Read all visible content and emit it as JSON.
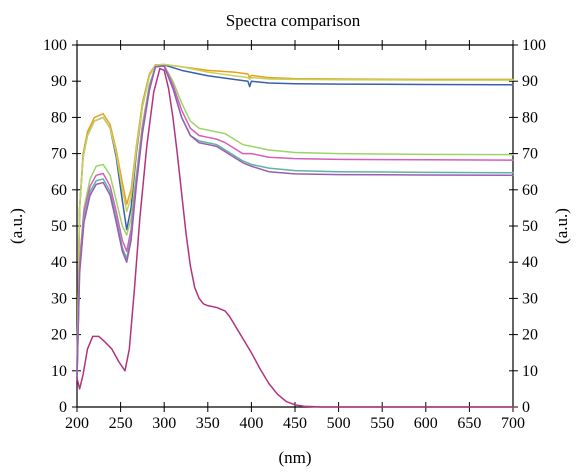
{
  "chart_data": {
    "type": "line",
    "title": "Spectra comparison",
    "xlabel": "(nm)",
    "ylabel": "(a.u.)",
    "ylabel_right": "(a.u.)",
    "xlim": [
      200,
      700
    ],
    "ylim": [
      0,
      100
    ],
    "xticks": [
      200,
      250,
      300,
      350,
      400,
      450,
      500,
      550,
      600,
      650,
      700
    ],
    "yticks": [
      0,
      10,
      20,
      30,
      40,
      50,
      60,
      70,
      80,
      90,
      100
    ],
    "grid": false,
    "legend": "none",
    "series": [
      {
        "color": "#e8a01e",
        "points": [
          [
            200,
            10
          ],
          [
            203,
            55
          ],
          [
            207,
            70
          ],
          [
            212,
            76
          ],
          [
            220,
            80
          ],
          [
            230,
            81
          ],
          [
            238,
            78
          ],
          [
            245,
            71
          ],
          [
            252,
            62
          ],
          [
            257,
            56
          ],
          [
            262,
            60
          ],
          [
            268,
            72
          ],
          [
            275,
            84
          ],
          [
            283,
            92
          ],
          [
            290,
            94.5
          ],
          [
            300,
            94.6
          ],
          [
            320,
            94
          ],
          [
            350,
            93
          ],
          [
            380,
            92.5
          ],
          [
            396,
            92
          ],
          [
            398,
            91
          ],
          [
            400,
            91.6
          ],
          [
            420,
            91
          ],
          [
            450,
            90.7
          ],
          [
            500,
            90.6
          ],
          [
            600,
            90.5
          ],
          [
            700,
            90.5
          ]
        ]
      },
      {
        "color": "#3a5fb0",
        "points": [
          [
            200,
            10
          ],
          [
            203,
            55
          ],
          [
            207,
            69
          ],
          [
            212,
            75
          ],
          [
            220,
            79
          ],
          [
            230,
            80
          ],
          [
            238,
            77
          ],
          [
            245,
            69
          ],
          [
            252,
            57
          ],
          [
            257,
            49
          ],
          [
            262,
            55
          ],
          [
            268,
            70
          ],
          [
            275,
            83
          ],
          [
            283,
            91.5
          ],
          [
            290,
            94.5
          ],
          [
            300,
            94.5
          ],
          [
            320,
            93
          ],
          [
            350,
            91.5
          ],
          [
            380,
            90.5
          ],
          [
            396,
            90
          ],
          [
            398,
            88.5
          ],
          [
            400,
            90
          ],
          [
            420,
            89.5
          ],
          [
            450,
            89.3
          ],
          [
            500,
            89.2
          ],
          [
            600,
            89.1
          ],
          [
            700,
            89
          ]
        ]
      },
      {
        "color": "#c6d35a",
        "points": [
          [
            200,
            10
          ],
          [
            203,
            55
          ],
          [
            207,
            69
          ],
          [
            212,
            75
          ],
          [
            220,
            79
          ],
          [
            230,
            80
          ],
          [
            238,
            77
          ],
          [
            245,
            70
          ],
          [
            252,
            60
          ],
          [
            257,
            54
          ],
          [
            262,
            58
          ],
          [
            268,
            71
          ],
          [
            275,
            83
          ],
          [
            283,
            91.5
          ],
          [
            290,
            94.5
          ],
          [
            300,
            94.6
          ],
          [
            320,
            94
          ],
          [
            350,
            92.5
          ],
          [
            380,
            91.5
          ],
          [
            396,
            91
          ],
          [
            398,
            90.5
          ],
          [
            400,
            91
          ],
          [
            420,
            90.6
          ],
          [
            450,
            90.5
          ],
          [
            500,
            90.4
          ],
          [
            600,
            90.3
          ],
          [
            700,
            90.3
          ]
        ]
      },
      {
        "color": "#9dd46a",
        "points": [
          [
            200,
            8
          ],
          [
            203,
            40
          ],
          [
            208,
            55
          ],
          [
            215,
            63
          ],
          [
            222,
            66.5
          ],
          [
            230,
            67
          ],
          [
            238,
            64
          ],
          [
            245,
            57
          ],
          [
            252,
            50
          ],
          [
            257,
            47.5
          ],
          [
            262,
            52
          ],
          [
            268,
            64
          ],
          [
            275,
            78
          ],
          [
            283,
            89
          ],
          [
            290,
            94
          ],
          [
            300,
            94.3
          ],
          [
            310,
            90
          ],
          [
            320,
            84
          ],
          [
            330,
            79
          ],
          [
            340,
            77
          ],
          [
            350,
            76.5
          ],
          [
            360,
            76
          ],
          [
            370,
            75.5
          ],
          [
            380,
            74
          ],
          [
            390,
            72.5
          ],
          [
            400,
            72
          ],
          [
            420,
            71
          ],
          [
            450,
            70.3
          ],
          [
            500,
            70
          ],
          [
            600,
            69.8
          ],
          [
            700,
            69.7
          ]
        ]
      },
      {
        "color": "#d35fb7",
        "points": [
          [
            200,
            8
          ],
          [
            203,
            40
          ],
          [
            208,
            54
          ],
          [
            215,
            61
          ],
          [
            222,
            64
          ],
          [
            230,
            64.5
          ],
          [
            238,
            61
          ],
          [
            245,
            54
          ],
          [
            252,
            46
          ],
          [
            257,
            43
          ],
          [
            262,
            49
          ],
          [
            268,
            63
          ],
          [
            275,
            77
          ],
          [
            283,
            88.5
          ],
          [
            290,
            94
          ],
          [
            300,
            94.3
          ],
          [
            310,
            89
          ],
          [
            320,
            82
          ],
          [
            330,
            77
          ],
          [
            340,
            75
          ],
          [
            350,
            74.5
          ],
          [
            360,
            74
          ],
          [
            370,
            73
          ],
          [
            380,
            71.5
          ],
          [
            390,
            70
          ],
          [
            400,
            70
          ],
          [
            420,
            69
          ],
          [
            450,
            68.6
          ],
          [
            500,
            68.4
          ],
          [
            600,
            68.3
          ],
          [
            700,
            68.2
          ]
        ]
      },
      {
        "color": "#5fb3a2",
        "points": [
          [
            200,
            8
          ],
          [
            203,
            38
          ],
          [
            208,
            52
          ],
          [
            215,
            59.5
          ],
          [
            222,
            62.5
          ],
          [
            230,
            63
          ],
          [
            238,
            59.5
          ],
          [
            245,
            52
          ],
          [
            252,
            44
          ],
          [
            257,
            41
          ],
          [
            262,
            47
          ],
          [
            268,
            62
          ],
          [
            275,
            76
          ],
          [
            283,
            88
          ],
          [
            290,
            94
          ],
          [
            300,
            94.2
          ],
          [
            310,
            88
          ],
          [
            320,
            80
          ],
          [
            330,
            75
          ],
          [
            340,
            73.5
          ],
          [
            350,
            73
          ],
          [
            360,
            72.5
          ],
          [
            370,
            71
          ],
          [
            380,
            69.5
          ],
          [
            390,
            68
          ],
          [
            400,
            67
          ],
          [
            420,
            66
          ],
          [
            450,
            65.3
          ],
          [
            500,
            65
          ],
          [
            600,
            64.8
          ],
          [
            700,
            64.7
          ]
        ]
      },
      {
        "color": "#9a5cb4",
        "points": [
          [
            200,
            8
          ],
          [
            203,
            37
          ],
          [
            208,
            51
          ],
          [
            215,
            58.5
          ],
          [
            222,
            61.5
          ],
          [
            230,
            62
          ],
          [
            238,
            58.5
          ],
          [
            245,
            51
          ],
          [
            252,
            43
          ],
          [
            257,
            40
          ],
          [
            262,
            46
          ],
          [
            268,
            61
          ],
          [
            275,
            75.5
          ],
          [
            283,
            87.5
          ],
          [
            290,
            94
          ],
          [
            300,
            94.2
          ],
          [
            310,
            88
          ],
          [
            320,
            80
          ],
          [
            330,
            75
          ],
          [
            340,
            73
          ],
          [
            350,
            72.5
          ],
          [
            360,
            72
          ],
          [
            370,
            70.5
          ],
          [
            380,
            69
          ],
          [
            390,
            67.5
          ],
          [
            400,
            66.5
          ],
          [
            420,
            65
          ],
          [
            450,
            64.4
          ],
          [
            500,
            64.2
          ],
          [
            600,
            64.1
          ],
          [
            700,
            64
          ]
        ]
      },
      {
        "color": "#b2337e",
        "points": [
          [
            200,
            8
          ],
          [
            203,
            5
          ],
          [
            207,
            9
          ],
          [
            212,
            16
          ],
          [
            218,
            19.5
          ],
          [
            225,
            19.5
          ],
          [
            232,
            18
          ],
          [
            240,
            16
          ],
          [
            248,
            12.5
          ],
          [
            255,
            10
          ],
          [
            260,
            16
          ],
          [
            266,
            33
          ],
          [
            272,
            52
          ],
          [
            280,
            72
          ],
          [
            288,
            87
          ],
          [
            295,
            93.5
          ],
          [
            300,
            93
          ],
          [
            305,
            88
          ],
          [
            310,
            80
          ],
          [
            315,
            70
          ],
          [
            320,
            59
          ],
          [
            325,
            48
          ],
          [
            330,
            39
          ],
          [
            335,
            33
          ],
          [
            340,
            30
          ],
          [
            345,
            28.5
          ],
          [
            350,
            28
          ],
          [
            360,
            27.5
          ],
          [
            370,
            26.5
          ],
          [
            375,
            25
          ],
          [
            380,
            23
          ],
          [
            390,
            19
          ],
          [
            400,
            15
          ],
          [
            410,
            10.5
          ],
          [
            420,
            6.5
          ],
          [
            430,
            3.5
          ],
          [
            440,
            1.5
          ],
          [
            450,
            0.6
          ],
          [
            460,
            0.2
          ],
          [
            480,
            0
          ],
          [
            500,
            0
          ],
          [
            550,
            0
          ],
          [
            600,
            0
          ],
          [
            650,
            0
          ],
          [
            700,
            0
          ]
        ]
      }
    ]
  }
}
